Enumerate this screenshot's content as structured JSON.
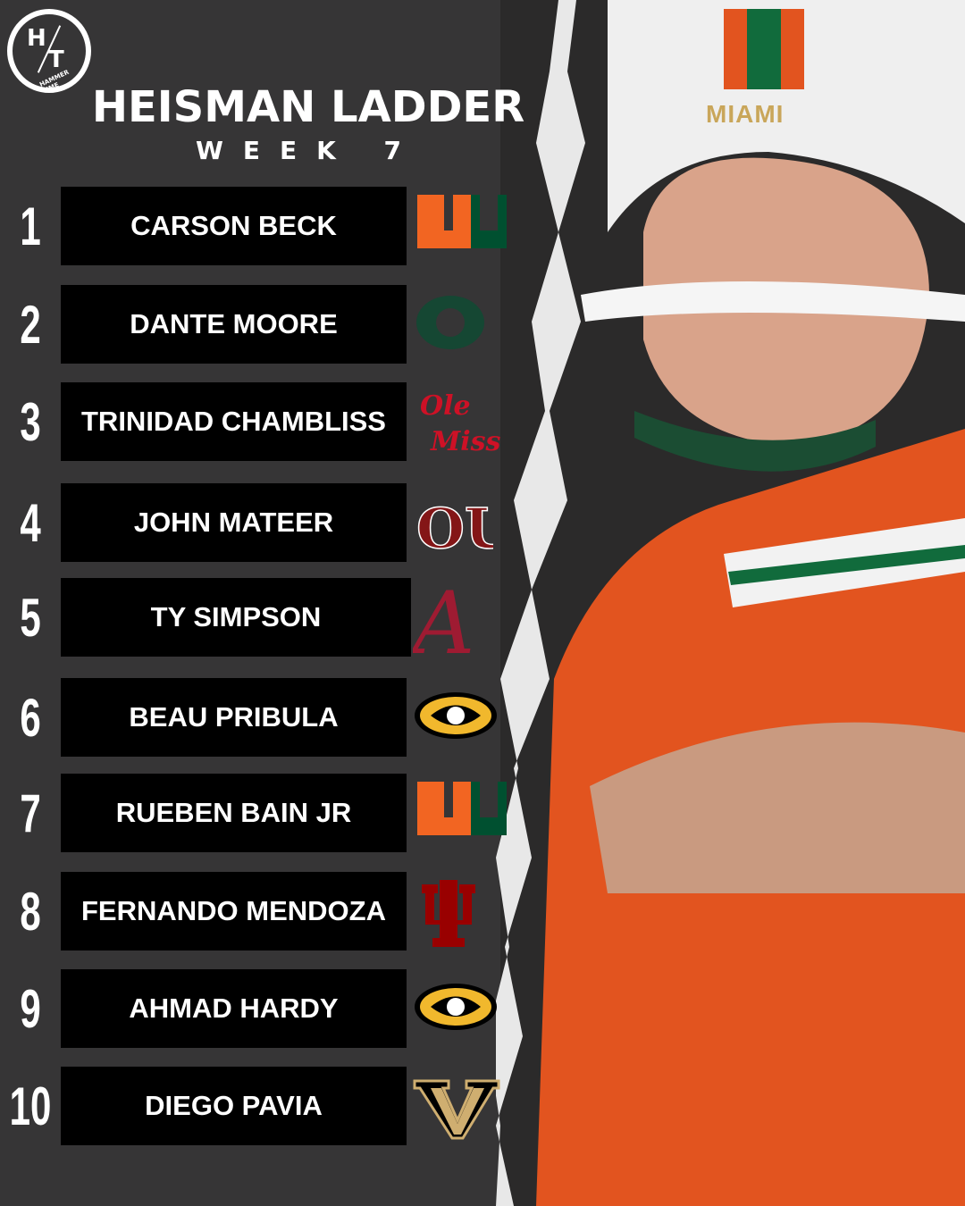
{
  "brand": {
    "logo_text": "H/T",
    "logo_tagline": "HAMMER TIME"
  },
  "header": {
    "title": "HEISMAN LADDER",
    "subtitle": "WEEK 7"
  },
  "photo": {
    "helmet_text": "MIAMI"
  },
  "ladder": [
    {
      "rank": "1",
      "name": "CARSON BECK",
      "team": "miami-u-logo"
    },
    {
      "rank": "2",
      "name": "DANTE MOORE",
      "team": "oregon-o-logo"
    },
    {
      "rank": "3",
      "name": "TRINIDAD CHAMBLISS",
      "team": "ole-miss-logo",
      "logo_text": "Ole Miss"
    },
    {
      "rank": "4",
      "name": "JOHN MATEER",
      "team": "oklahoma-ou-logo",
      "logo_text": "OU"
    },
    {
      "rank": "5",
      "name": "TY SIMPSON",
      "team": "alabama-a-logo",
      "logo_text": "A"
    },
    {
      "rank": "6",
      "name": "BEAU PRIBULA",
      "team": "missouri-tiger-logo"
    },
    {
      "rank": "7",
      "name": "RUEBEN BAIN JR",
      "team": "miami-u-logo"
    },
    {
      "rank": "8",
      "name": "FERNANDO MENDOZA",
      "team": "indiana-iu-logo"
    },
    {
      "rank": "9",
      "name": "AHMAD HARDY",
      "team": "missouri-tiger-logo"
    },
    {
      "rank": "10",
      "name": "DIEGO PAVIA",
      "team": "vanderbilt-v-logo"
    }
  ],
  "colors": {
    "background": "#363536",
    "box": "#000000",
    "miami_orange": "#f26522",
    "miami_green": "#005030",
    "oregon_green": "#154733",
    "ole_miss_red": "#ce1126",
    "ou_crimson": "#841617",
    "alabama_crimson": "#9e1b32",
    "mizzou_gold": "#f1b82d",
    "indiana_crimson": "#990000",
    "vandy_gold": "#cfae70"
  }
}
